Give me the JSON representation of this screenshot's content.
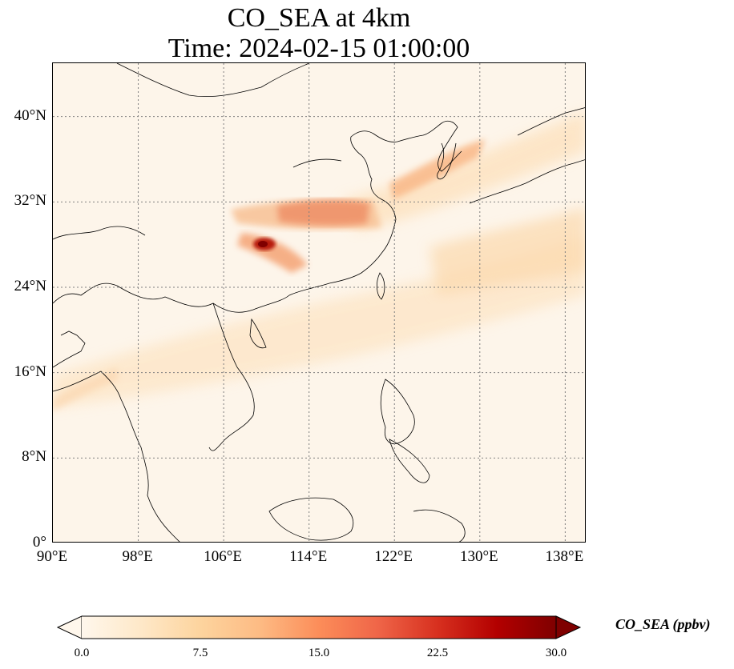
{
  "title": {
    "line1": "CO_SEA at 4km",
    "line2": "Time: 2024-02-15 01:00:00"
  },
  "map": {
    "projection": "PlateCarree",
    "lon_range": [
      90,
      140
    ],
    "lat_range": [
      0,
      45
    ],
    "gridlines": "dotted",
    "x_ticks": [
      "90°E",
      "98°E",
      "106°E",
      "114°E",
      "122°E",
      "130°E",
      "138°E"
    ],
    "y_ticks": [
      "0°",
      "8°N",
      "16°N",
      "24°N",
      "32°N",
      "40°N"
    ]
  },
  "colorbar": {
    "label": "CO_SEA (ppbv)",
    "colormap": "OrRd",
    "range": [
      0,
      30
    ],
    "extend": "both",
    "ticks": [
      "0.0",
      "7.5",
      "15.0",
      "22.5",
      "30.0"
    ],
    "colors": [
      "#fff7ec",
      "#fee8c8",
      "#fdd49e",
      "#fdbb84",
      "#fc8d59",
      "#ef6548",
      "#d7301f",
      "#b30000",
      "#7f0000"
    ]
  }
}
